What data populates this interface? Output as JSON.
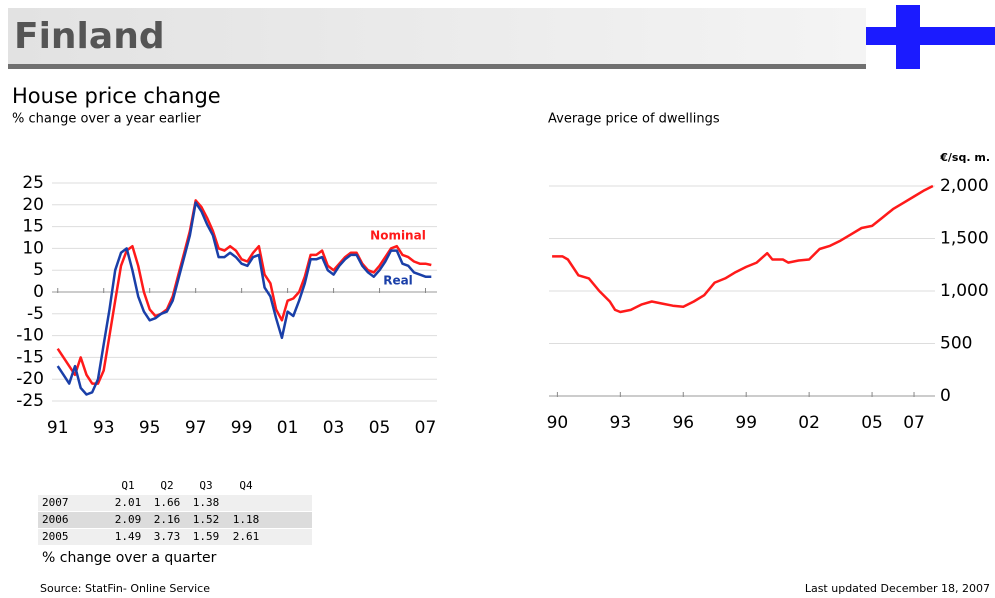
{
  "header": {
    "title": "Finland"
  },
  "chart_data": [
    {
      "type": "line",
      "title": "House price change",
      "subtitle": "% change over a year earlier",
      "x": [
        1991.0,
        1991.25,
        1991.5,
        1991.75,
        1992.0,
        1992.25,
        1992.5,
        1992.75,
        1993.0,
        1993.25,
        1993.5,
        1993.75,
        1994.0,
        1994.25,
        1994.5,
        1994.75,
        1995.0,
        1995.25,
        1995.5,
        1995.75,
        1996.0,
        1996.25,
        1996.5,
        1996.75,
        1997.0,
        1997.25,
        1997.5,
        1997.75,
        1998.0,
        1998.25,
        1998.5,
        1998.75,
        1999.0,
        1999.25,
        1999.5,
        1999.75,
        2000.0,
        2000.25,
        2000.5,
        2000.75,
        2001.0,
        2001.25,
        2001.5,
        2001.75,
        2002.0,
        2002.25,
        2002.5,
        2002.75,
        2003.0,
        2003.25,
        2003.5,
        2003.75,
        2004.0,
        2004.25,
        2004.5,
        2004.75,
        2005.0,
        2005.25,
        2005.5,
        2005.75,
        2006.0,
        2006.25,
        2006.5,
        2006.75,
        2007.0,
        2007.25
      ],
      "series": [
        {
          "name": "Nominal",
          "color": "#ff1a1a",
          "values": [
            -13,
            -15,
            -17,
            -19,
            -15,
            -19,
            -21,
            -21,
            -18,
            -10,
            -2,
            6,
            9.5,
            10.5,
            6,
            0,
            -4,
            -5.5,
            -5,
            -4,
            -1,
            4,
            9,
            14,
            21,
            19.5,
            17,
            14,
            10,
            9.5,
            10.5,
            9.5,
            7.5,
            7,
            9,
            10.5,
            4,
            2,
            -4,
            -6.5,
            -2,
            -1.5,
            0,
            3.5,
            8.5,
            8.5,
            9.5,
            6,
            5,
            6.5,
            8,
            9,
            9,
            6.5,
            5,
            4.5,
            6,
            8,
            10,
            10.5,
            8.5,
            8,
            7,
            6.5,
            6.5,
            6.2
          ]
        },
        {
          "name": "Real",
          "color": "#1a3fa8",
          "values": [
            -17,
            -19,
            -21,
            -17,
            -22,
            -23.5,
            -23,
            -20,
            -12,
            -4,
            5,
            9,
            10,
            5,
            -1,
            -4.5,
            -6.5,
            -6,
            -5,
            -4.5,
            -2,
            3,
            8,
            13,
            20.5,
            18.5,
            15.5,
            13,
            8,
            8,
            9,
            8,
            6.5,
            6,
            8,
            8.5,
            1,
            -1,
            -6,
            -10.5,
            -4.5,
            -5.5,
            -2,
            2,
            7.5,
            7.5,
            8,
            5,
            4,
            6,
            7.5,
            8.5,
            8.5,
            6,
            4.5,
            3.5,
            5,
            7,
            9.5,
            9.5,
            6.5,
            6,
            4.5,
            4,
            3.5,
            3.5
          ]
        }
      ],
      "xlim": [
        1990.75,
        2007.5
      ],
      "xticks": [
        {
          "value": 1991,
          "label": "91"
        },
        {
          "value": 1993,
          "label": "93"
        },
        {
          "value": 1995,
          "label": "95"
        },
        {
          "value": 1997,
          "label": "97"
        },
        {
          "value": 1999,
          "label": "99"
        },
        {
          "value": 2001,
          "label": "01"
        },
        {
          "value": 2003,
          "label": "03"
        },
        {
          "value": 2005,
          "label": "05"
        },
        {
          "value": 2007,
          "label": "07"
        }
      ],
      "ylim": [
        -25,
        25
      ],
      "yticks": [
        -25,
        -20,
        -15,
        -10,
        -5,
        0,
        5,
        10,
        15,
        20,
        25
      ],
      "grid": true,
      "y_axis_side": "left"
    },
    {
      "type": "line",
      "title": "Average price of dwellings",
      "y_label": "€/sq. m.",
      "x": [
        1989.75,
        1990.25,
        1990.5,
        1991.0,
        1991.5,
        1992.0,
        1992.5,
        1992.75,
        1993.0,
        1993.5,
        1994.0,
        1994.5,
        1995.0,
        1995.5,
        1996.0,
        1996.5,
        1997.0,
        1997.5,
        1998.0,
        1998.5,
        1999.0,
        1999.5,
        2000.0,
        2000.25,
        2000.75,
        2001.0,
        2001.5,
        2002.0,
        2002.5,
        2003.0,
        2003.5,
        2004.0,
        2004.5,
        2005.0,
        2005.5,
        2006.0,
        2006.5,
        2007.0,
        2007.5,
        2007.9
      ],
      "values": [
        1330,
        1330,
        1300,
        1150,
        1120,
        1000,
        900,
        820,
        800,
        820,
        870,
        900,
        880,
        860,
        850,
        900,
        960,
        1080,
        1120,
        1180,
        1230,
        1270,
        1360,
        1300,
        1300,
        1270,
        1290,
        1300,
        1400,
        1430,
        1480,
        1540,
        1600,
        1620,
        1700,
        1780,
        1840,
        1900,
        1960,
        2000
      ],
      "color": "#ff1a1a",
      "xlim": [
        1989.6,
        2008.0
      ],
      "xticks": [
        {
          "value": 1990,
          "label": "90"
        },
        {
          "value": 1993,
          "label": "93"
        },
        {
          "value": 1996,
          "label": "96"
        },
        {
          "value": 1999,
          "label": "99"
        },
        {
          "value": 2002,
          "label": "02"
        },
        {
          "value": 2005,
          "label": "05"
        },
        {
          "value": 2007,
          "label": "07"
        }
      ],
      "ylim": [
        0,
        2100
      ],
      "yticks": [
        0,
        500,
        {
          "value": 1000,
          "label": "1,000"
        },
        {
          "value": 1500,
          "label": "1,500"
        },
        {
          "value": 2000,
          "label": "2,000"
        }
      ],
      "grid": true,
      "y_axis_side": "right"
    }
  ],
  "table": {
    "columns": [
      "Q1",
      "Q2",
      "Q3",
      "Q4"
    ],
    "rows": [
      {
        "label": "2007",
        "values": [
          2.01,
          1.66,
          1.38
        ]
      },
      {
        "label": "2006",
        "values": [
          2.09,
          2.16,
          1.52,
          1.18
        ]
      },
      {
        "label": "2005",
        "values": [
          1.49,
          3.73,
          1.59,
          2.61
        ]
      }
    ],
    "caption": "% change over a quarter"
  },
  "footer": {
    "source": "Source: StatFin- Online Service",
    "updated": "Last updated December 18, 2007"
  }
}
